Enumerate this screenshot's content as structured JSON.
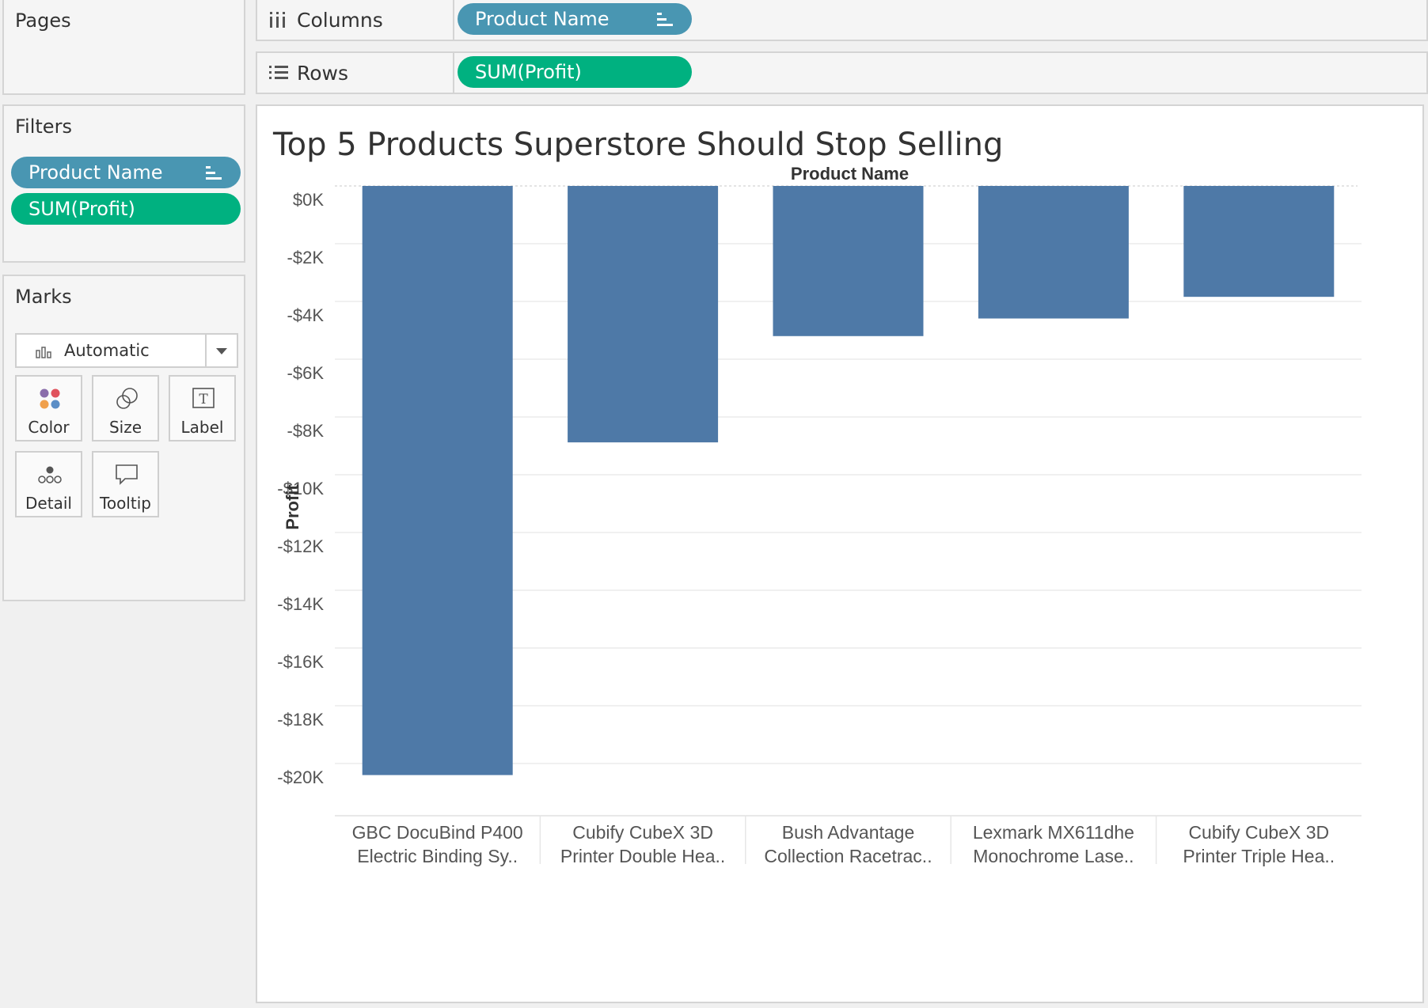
{
  "cards": {
    "pages_title": "Pages",
    "filters_title": "Filters",
    "marks_title": "Marks"
  },
  "shelves": {
    "columns_label": "Columns",
    "rows_label": "Rows",
    "columns_pill": "Product Name",
    "rows_pill": "SUM(Profit)"
  },
  "filters": {
    "items": [
      "Product Name",
      "SUM(Profit)"
    ]
  },
  "marks": {
    "type": "Automatic",
    "buttons": [
      "Color",
      "Size",
      "Label",
      "Detail",
      "Tooltip"
    ]
  },
  "colors": {
    "dimension_pill": "#4996b2",
    "measure_pill": "#00b180",
    "bar": "#4e79a7"
  },
  "chart_data": {
    "type": "bar",
    "title": "Top 5 Products Superstore Should Stop Selling",
    "column_header": "Product Name",
    "xlabel": "",
    "ylabel": "Profit",
    "ylim": [
      -21000,
      0
    ],
    "y_ticks": [
      0,
      -2000,
      -4000,
      -6000,
      -8000,
      -10000,
      -12000,
      -14000,
      -16000,
      -18000,
      -20000
    ],
    "y_tick_labels": [
      "$0K",
      "-$2K",
      "-$4K",
      "-$6K",
      "-$8K",
      "-$10K",
      "-$12K",
      "-$14K",
      "-$16K",
      "-$18K",
      "-$20K"
    ],
    "categories": [
      [
        "GBC DocuBind P400",
        "Electric Binding Sy.."
      ],
      [
        "Cubify CubeX 3D",
        "Printer Double Hea.."
      ],
      [
        "Bush Advantage",
        "Collection Racetrac.."
      ],
      [
        "Lexmark MX611dhe",
        "Monochrome Lase.."
      ],
      [
        "Cubify CubeX 3D",
        "Printer Triple Hea.."
      ]
    ],
    "values": [
      -20400,
      -8880,
      -5200,
      -4590,
      -3840
    ],
    "grid": true,
    "legend": "none"
  }
}
